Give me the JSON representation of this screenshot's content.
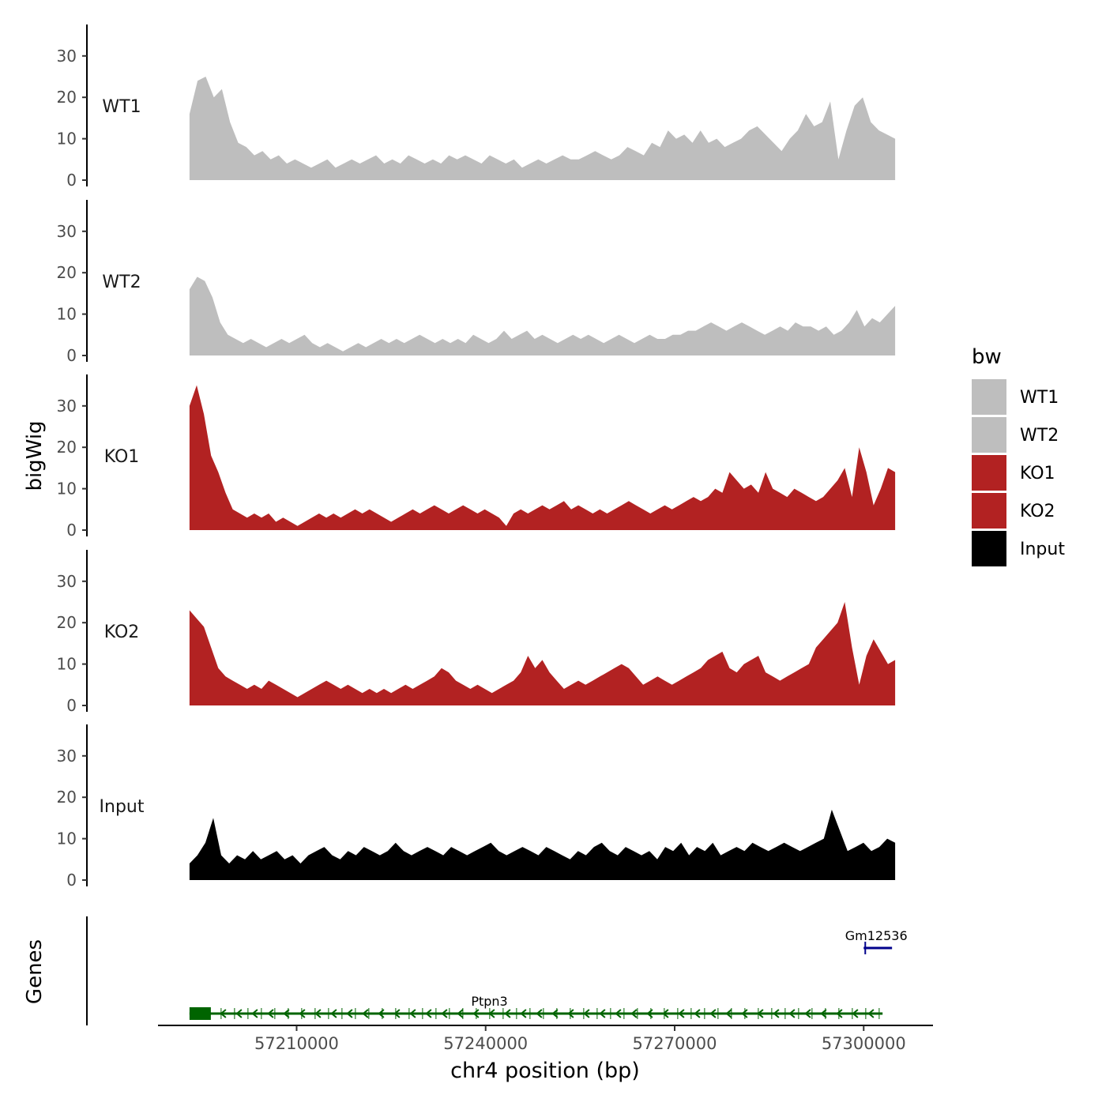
{
  "chart_data": {
    "type": "area",
    "ylabel": "bigWig",
    "genes_label": "Genes",
    "xlabel": "chr4 position (bp)",
    "xlim": [
      57188000,
      57311000
    ],
    "x_range_data": [
      57193000,
      57305000
    ],
    "ylim": [
      0,
      37
    ],
    "y_ticks": [
      0,
      10,
      20,
      30
    ],
    "x_ticks": [
      57210000,
      57240000,
      57270000,
      57300000
    ],
    "x_tick_labels": [
      "57210000",
      "57240000",
      "57270000",
      "57300000"
    ],
    "legend": {
      "title": "bw",
      "position": "right",
      "entries": [
        {
          "label": "WT1",
          "color": "#bebebe"
        },
        {
          "label": "WT2",
          "color": "#bebebe"
        },
        {
          "label": "KO1",
          "color": "#b22222"
        },
        {
          "label": "KO2",
          "color": "#b22222"
        },
        {
          "label": "Input",
          "color": "#000000"
        }
      ]
    },
    "series": [
      {
        "name": "WT1",
        "color": "#bebebe",
        "values": [
          16,
          24,
          25,
          20,
          22,
          14,
          9,
          8,
          6,
          7,
          5,
          6,
          4,
          5,
          4,
          3,
          4,
          5,
          3,
          4,
          5,
          4,
          5,
          6,
          4,
          5,
          4,
          6,
          5,
          4,
          5,
          4,
          6,
          5,
          6,
          5,
          4,
          6,
          5,
          4,
          5,
          3,
          4,
          5,
          4,
          5,
          6,
          5,
          5,
          6,
          7,
          6,
          5,
          6,
          8,
          7,
          6,
          9,
          8,
          12,
          10,
          11,
          9,
          12,
          9,
          10,
          8,
          9,
          10,
          12,
          13,
          11,
          9,
          7,
          10,
          12,
          16,
          13,
          14,
          19,
          5,
          12,
          18,
          20,
          14,
          12,
          11,
          10
        ]
      },
      {
        "name": "WT2",
        "color": "#bebebe",
        "values": [
          16,
          19,
          18,
          14,
          8,
          5,
          4,
          3,
          4,
          3,
          2,
          3,
          4,
          3,
          4,
          5,
          3,
          2,
          3,
          2,
          1,
          2,
          3,
          2,
          3,
          4,
          3,
          4,
          3,
          4,
          5,
          4,
          3,
          4,
          3,
          4,
          3,
          5,
          4,
          3,
          4,
          6,
          4,
          5,
          6,
          4,
          5,
          4,
          3,
          4,
          5,
          4,
          5,
          4,
          3,
          4,
          5,
          4,
          3,
          4,
          5,
          4,
          4,
          5,
          5,
          6,
          6,
          7,
          8,
          7,
          6,
          7,
          8,
          7,
          6,
          5,
          6,
          7,
          6,
          8,
          7,
          7,
          6,
          7,
          5,
          6,
          8,
          11,
          7,
          9,
          8,
          10,
          12
        ]
      },
      {
        "name": "KO1",
        "color": "#b22222",
        "values": [
          30,
          35,
          28,
          18,
          14,
          9,
          5,
          4,
          3,
          4,
          3,
          4,
          2,
          3,
          2,
          1,
          2,
          3,
          4,
          3,
          4,
          3,
          4,
          5,
          4,
          5,
          4,
          3,
          2,
          3,
          4,
          5,
          4,
          5,
          6,
          5,
          4,
          5,
          6,
          5,
          4,
          5,
          4,
          3,
          1,
          4,
          5,
          4,
          5,
          6,
          5,
          6,
          7,
          5,
          6,
          5,
          4,
          5,
          4,
          5,
          6,
          7,
          6,
          5,
          4,
          5,
          6,
          5,
          6,
          7,
          8,
          7,
          8,
          10,
          9,
          14,
          12,
          10,
          11,
          9,
          14,
          10,
          9,
          8,
          10,
          9,
          8,
          7,
          8,
          10,
          12,
          15,
          8,
          20,
          14,
          6,
          10,
          15,
          14
        ]
      },
      {
        "name": "KO2",
        "color": "#b22222",
        "values": [
          23,
          21,
          19,
          14,
          9,
          7,
          6,
          5,
          4,
          5,
          4,
          6,
          5,
          4,
          3,
          2,
          3,
          4,
          5,
          6,
          5,
          4,
          5,
          4,
          3,
          4,
          3,
          4,
          3,
          4,
          5,
          4,
          5,
          6,
          7,
          9,
          8,
          6,
          5,
          4,
          5,
          4,
          3,
          4,
          5,
          6,
          8,
          12,
          9,
          11,
          8,
          6,
          4,
          5,
          6,
          5,
          6,
          7,
          8,
          9,
          10,
          9,
          7,
          5,
          6,
          7,
          6,
          5,
          6,
          7,
          8,
          9,
          11,
          12,
          13,
          9,
          8,
          10,
          11,
          12,
          8,
          7,
          6,
          7,
          8,
          9,
          10,
          14,
          16,
          18,
          20,
          25,
          14,
          5,
          12,
          16,
          13,
          10,
          11
        ]
      },
      {
        "name": "Input",
        "color": "#000000",
        "values": [
          4,
          6,
          9,
          15,
          6,
          4,
          6,
          5,
          7,
          5,
          6,
          7,
          5,
          6,
          4,
          6,
          7,
          8,
          6,
          5,
          7,
          6,
          8,
          7,
          6,
          7,
          9,
          7,
          6,
          7,
          8,
          7,
          6,
          8,
          7,
          6,
          7,
          8,
          9,
          7,
          6,
          7,
          8,
          7,
          6,
          8,
          7,
          6,
          5,
          7,
          6,
          8,
          9,
          7,
          6,
          8,
          7,
          6,
          7,
          5,
          8,
          7,
          9,
          6,
          8,
          7,
          9,
          6,
          7,
          8,
          7,
          9,
          8,
          7,
          8,
          9,
          8,
          7,
          8,
          9,
          10,
          17,
          12,
          7,
          8,
          9,
          7,
          8,
          10,
          9
        ]
      }
    ],
    "genes": [
      {
        "name": "Ptpn3",
        "color": "#006400",
        "start": 57193000,
        "end": 57303000,
        "strand": "-",
        "row": "bottom"
      },
      {
        "name": "Gm12536",
        "color": "#00008b",
        "start": 57300000,
        "end": 57304500,
        "strand": "+",
        "row": "top"
      }
    ]
  }
}
